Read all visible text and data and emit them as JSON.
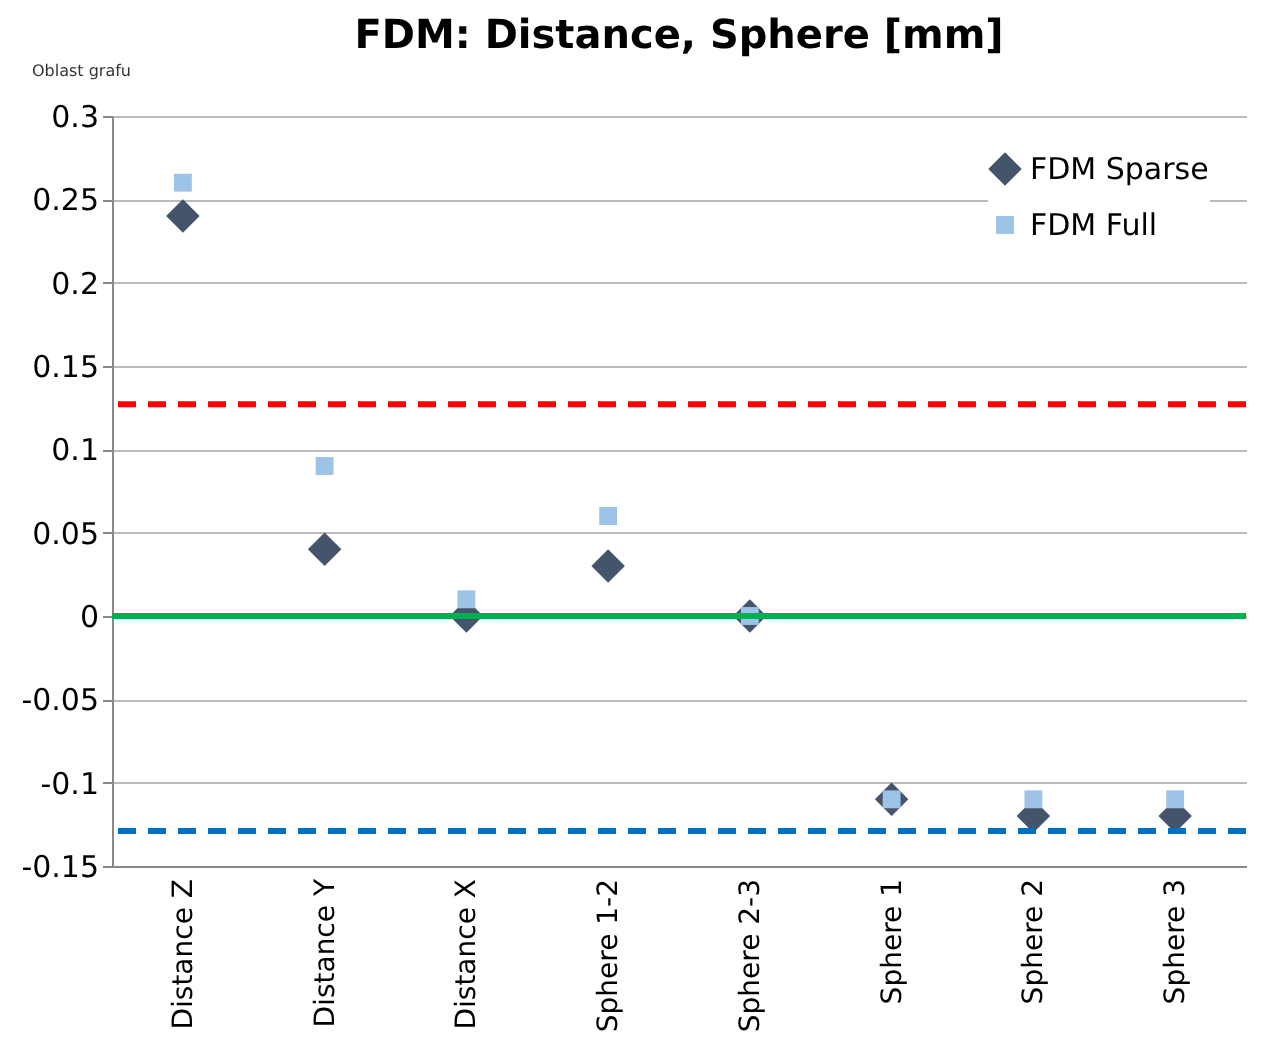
{
  "chart_data": {
    "type": "scatter",
    "title": "FDM: Distance, Sphere [mm]",
    "categories": [
      "Distance Z",
      "Distance Y",
      "Distance X",
      "Sphere 1-2",
      "Sphere 2-3",
      "Sphere 1",
      "Sphere 2",
      "Sphere 3"
    ],
    "series": [
      {
        "name": "FDM Sparse",
        "color": "#44546a",
        "marker": "diamond",
        "values": [
          0.24,
          0.04,
          0,
          0.03,
          0,
          -0.11,
          -0.12,
          -0.12
        ]
      },
      {
        "name": "FDM Full",
        "color": "#9dc3e6",
        "marker": "square",
        "values": [
          0.26,
          0.09,
          0.01,
          0.06,
          0,
          -0.11,
          -0.11,
          -0.11
        ]
      }
    ],
    "ylim": [
      -0.15,
      0.3
    ],
    "yticks": [
      -0.15,
      -0.1,
      -0.05,
      0,
      0.05,
      0.1,
      0.15,
      0.2,
      0.25,
      0.3
    ],
    "ref_lines": [
      {
        "axis": "y",
        "value": 0.127,
        "color": "#ff0000",
        "line_style": "dashed"
      },
      {
        "axis": "y",
        "value": 0,
        "color": "#00b050",
        "line_style": "solid"
      },
      {
        "axis": "y",
        "value": -0.129,
        "color": "#0070c0",
        "line_style": "dashed"
      }
    ],
    "annotations": [
      "Oblast grafu"
    ],
    "grid": "y",
    "legend": "top right"
  }
}
